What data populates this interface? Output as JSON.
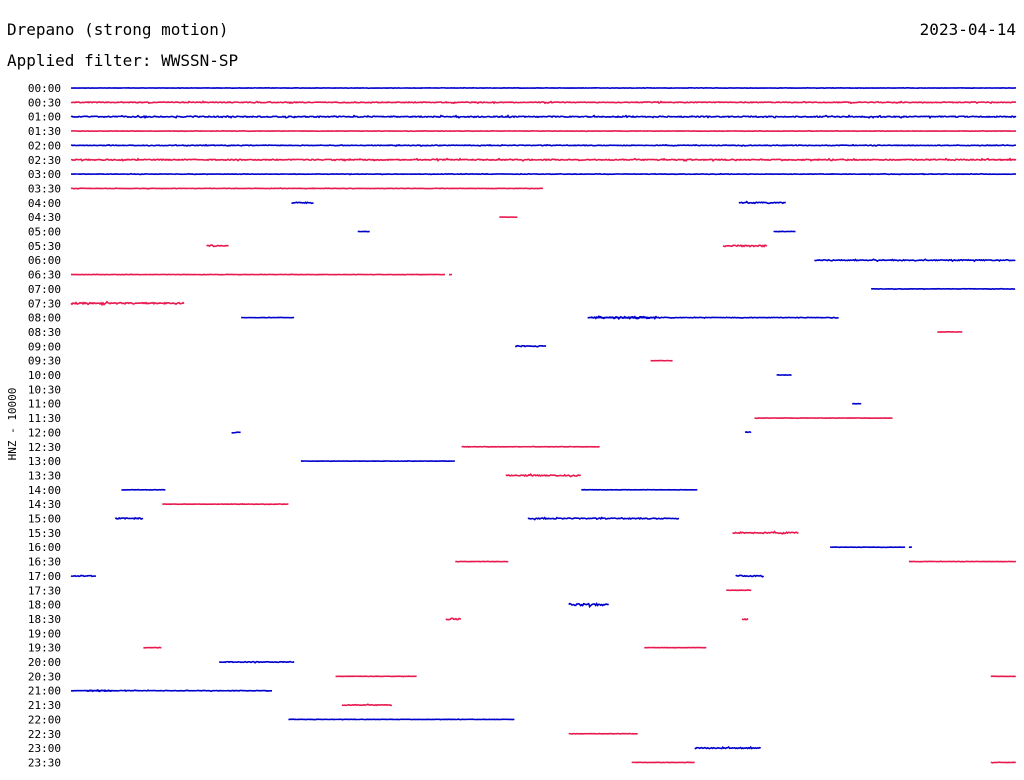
{
  "header": {
    "station": "Drepano (strong motion)",
    "date": "2023-04-14",
    "filter": "Applied filter: WWSSN-SP"
  },
  "colors": {
    "even_row": "#0000cc",
    "odd_row": "#e8194f"
  },
  "chart_data": {
    "type": "helicorder",
    "ylabel": "HNZ - 10000",
    "row_labels": [
      "00:00",
      "00:30",
      "01:00",
      "01:30",
      "02:00",
      "02:30",
      "03:00",
      "03:30",
      "04:00",
      "04:30",
      "05:00",
      "05:30",
      "06:00",
      "06:30",
      "07:00",
      "07:30",
      "08:00",
      "08:30",
      "09:00",
      "09:30",
      "10:00",
      "10:30",
      "11:00",
      "11:30",
      "12:00",
      "12:30",
      "13:00",
      "13:30",
      "14:00",
      "14:30",
      "15:00",
      "15:30",
      "16:00",
      "16:30",
      "17:00",
      "17:30",
      "18:00",
      "18:30",
      "19:00",
      "19:30",
      "20:00",
      "20:30",
      "21:00",
      "21:30",
      "22:00",
      "22:30",
      "23:00",
      "23:30"
    ],
    "row_span_minutes": 30,
    "traces": [
      {
        "row": 0,
        "start_min": 0,
        "end_min": 30,
        "noise": 0.3
      },
      {
        "row": 1,
        "start_min": 0,
        "end_min": 30,
        "noise": 0.8
      },
      {
        "row": 2,
        "start_min": 0,
        "end_min": 30,
        "noise": 1.0
      },
      {
        "row": 3,
        "start_min": 0,
        "end_min": 30,
        "noise": 0.3
      },
      {
        "row": 4,
        "start_min": 0,
        "end_min": 30,
        "noise": 0.6
      },
      {
        "row": 5,
        "start_min": 0,
        "end_min": 30,
        "noise": 1.0
      },
      {
        "row": 6,
        "start_min": 0,
        "end_min": 30,
        "noise": 0.4
      },
      {
        "row": 7,
        "start_min": 0,
        "end_min": 15,
        "noise": 0.4
      },
      {
        "row": 8,
        "start_min": 7.0,
        "end_min": 7.7,
        "noise": 1.2
      },
      {
        "row": 8,
        "start_min": 21.2,
        "end_min": 22.7,
        "noise": 1.2
      },
      {
        "row": 9,
        "start_min": 13.6,
        "end_min": 14.2,
        "noise": 0.3
      },
      {
        "row": 10,
        "start_min": 9.1,
        "end_min": 9.5,
        "noise": 0.3
      },
      {
        "row": 10,
        "start_min": 22.3,
        "end_min": 23.0,
        "noise": 0.3
      },
      {
        "row": 11,
        "start_min": 4.3,
        "end_min": 5.0,
        "noise": 1.5
      },
      {
        "row": 11,
        "start_min": 20.7,
        "end_min": 22.1,
        "noise": 1.5
      },
      {
        "row": 12,
        "start_min": 23.6,
        "end_min": 30,
        "noise": 0.9
      },
      {
        "row": 13,
        "start_min": 0,
        "end_min": 11.9,
        "noise": 0.3
      },
      {
        "row": 13,
        "start_min": 12.0,
        "end_min": 12.1,
        "noise": 0.3
      },
      {
        "row": 14,
        "start_min": 25.4,
        "end_min": 30,
        "noise": 0.4
      },
      {
        "row": 15,
        "start_min": 0,
        "end_min": 3.6,
        "noise": 1.4
      },
      {
        "row": 16,
        "start_min": 5.4,
        "end_min": 7.1,
        "noise": 0.3
      },
      {
        "row": 16,
        "start_min": 16.4,
        "end_min": 24.4,
        "noise": 0.5
      },
      {
        "row": 16,
        "start_min": 16.5,
        "end_min": 18.6,
        "noise": 2.0
      },
      {
        "row": 17,
        "start_min": 27.5,
        "end_min": 28.3,
        "noise": 0.3
      },
      {
        "row": 18,
        "start_min": 14.1,
        "end_min": 15.1,
        "noise": 1.2
      },
      {
        "row": 19,
        "start_min": 18.4,
        "end_min": 19.1,
        "noise": 0.3
      },
      {
        "row": 20,
        "start_min": 22.4,
        "end_min": 22.9,
        "noise": 0.3
      },
      {
        "row": 22,
        "start_min": 24.8,
        "end_min": 25.1,
        "noise": 0.3
      },
      {
        "row": 23,
        "start_min": 21.7,
        "end_min": 26.1,
        "noise": 0.3
      },
      {
        "row": 24,
        "start_min": 5.1,
        "end_min": 5.4,
        "noise": 1.2
      },
      {
        "row": 24,
        "start_min": 21.4,
        "end_min": 21.6,
        "noise": 1.2
      },
      {
        "row": 25,
        "start_min": 12.4,
        "end_min": 16.8,
        "noise": 0.3
      },
      {
        "row": 26,
        "start_min": 7.3,
        "end_min": 12.2,
        "noise": 0.3
      },
      {
        "row": 27,
        "start_min": 13.8,
        "end_min": 16.2,
        "noise": 1.2
      },
      {
        "row": 28,
        "start_min": 1.6,
        "end_min": 3.0,
        "noise": 0.3
      },
      {
        "row": 28,
        "start_min": 16.2,
        "end_min": 19.9,
        "noise": 0.3
      },
      {
        "row": 29,
        "start_min": 2.9,
        "end_min": 6.9,
        "noise": 0.3
      },
      {
        "row": 30,
        "start_min": 1.4,
        "end_min": 2.3,
        "noise": 1.2
      },
      {
        "row": 30,
        "start_min": 14.5,
        "end_min": 19.3,
        "noise": 1.0
      },
      {
        "row": 31,
        "start_min": 21.0,
        "end_min": 23.1,
        "noise": 1.2
      },
      {
        "row": 32,
        "start_min": 24.1,
        "end_min": 26.5,
        "noise": 0.3
      },
      {
        "row": 32,
        "start_min": 26.6,
        "end_min": 26.7,
        "noise": 0.3
      },
      {
        "row": 33,
        "start_min": 12.2,
        "end_min": 13.9,
        "noise": 0.3
      },
      {
        "row": 33,
        "start_min": 26.6,
        "end_min": 30,
        "noise": 0.3
      },
      {
        "row": 34,
        "start_min": 0,
        "end_min": 0.8,
        "noise": 1.2
      },
      {
        "row": 34,
        "start_min": 21.1,
        "end_min": 22.0,
        "noise": 1.2
      },
      {
        "row": 35,
        "start_min": 20.8,
        "end_min": 21.6,
        "noise": 0.3
      },
      {
        "row": 36,
        "start_min": 15.8,
        "end_min": 17.1,
        "noise": 2.0
      },
      {
        "row": 37,
        "start_min": 11.9,
        "end_min": 12.4,
        "noise": 1.5
      },
      {
        "row": 37,
        "start_min": 21.3,
        "end_min": 21.5,
        "noise": 1.5
      },
      {
        "row": 39,
        "start_min": 2.3,
        "end_min": 2.9,
        "noise": 0.3
      },
      {
        "row": 39,
        "start_min": 18.2,
        "end_min": 20.2,
        "noise": 0.3
      },
      {
        "row": 40,
        "start_min": 4.7,
        "end_min": 7.1,
        "noise": 0.8
      },
      {
        "row": 41,
        "start_min": 8.4,
        "end_min": 11.0,
        "noise": 0.3
      },
      {
        "row": 41,
        "start_min": 29.2,
        "end_min": 30,
        "noise": 0.3
      },
      {
        "row": 42,
        "start_min": 0,
        "end_min": 6.4,
        "noise": 0.5
      },
      {
        "row": 42,
        "start_min": 0.5,
        "end_min": 1.3,
        "noise": 1.6
      },
      {
        "row": 43,
        "start_min": 8.6,
        "end_min": 10.2,
        "noise": 0.7
      },
      {
        "row": 44,
        "start_min": 6.9,
        "end_min": 14.1,
        "noise": 0.3
      },
      {
        "row": 45,
        "start_min": 15.8,
        "end_min": 18.0,
        "noise": 0.3
      },
      {
        "row": 46,
        "start_min": 19.8,
        "end_min": 21.9,
        "noise": 1.0
      },
      {
        "row": 47,
        "start_min": 17.8,
        "end_min": 19.8,
        "noise": 0.3
      },
      {
        "row": 47,
        "start_min": 29.2,
        "end_min": 30,
        "noise": 0.3
      }
    ]
  }
}
